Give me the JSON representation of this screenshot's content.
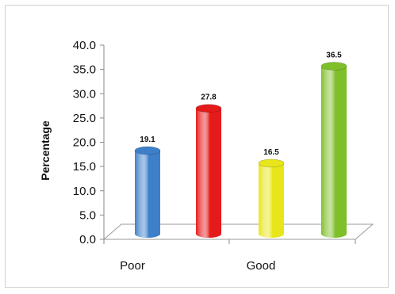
{
  "chart_data": {
    "type": "bar",
    "categories": [
      "Poor",
      "",
      "Good",
      ""
    ],
    "values": [
      19.1,
      27.8,
      16.5,
      36.5
    ],
    "value_labels": [
      "19.1",
      "27.8",
      "16.5",
      "36.5"
    ],
    "bar_colors": [
      "#3d7fc9",
      "#e51a1a",
      "#e8e61a",
      "#7fbf2a"
    ],
    "ylabel": "Percentage",
    "xlabel": "",
    "title": "",
    "ylim": [
      0,
      40
    ],
    "yticks": [
      "0.0",
      "5.0",
      "10.0",
      "15.0",
      "20.0",
      "25.0",
      "30.0",
      "35.0",
      "40.0"
    ],
    "grid": false,
    "legend": "none",
    "style": "3d-cylinder"
  }
}
